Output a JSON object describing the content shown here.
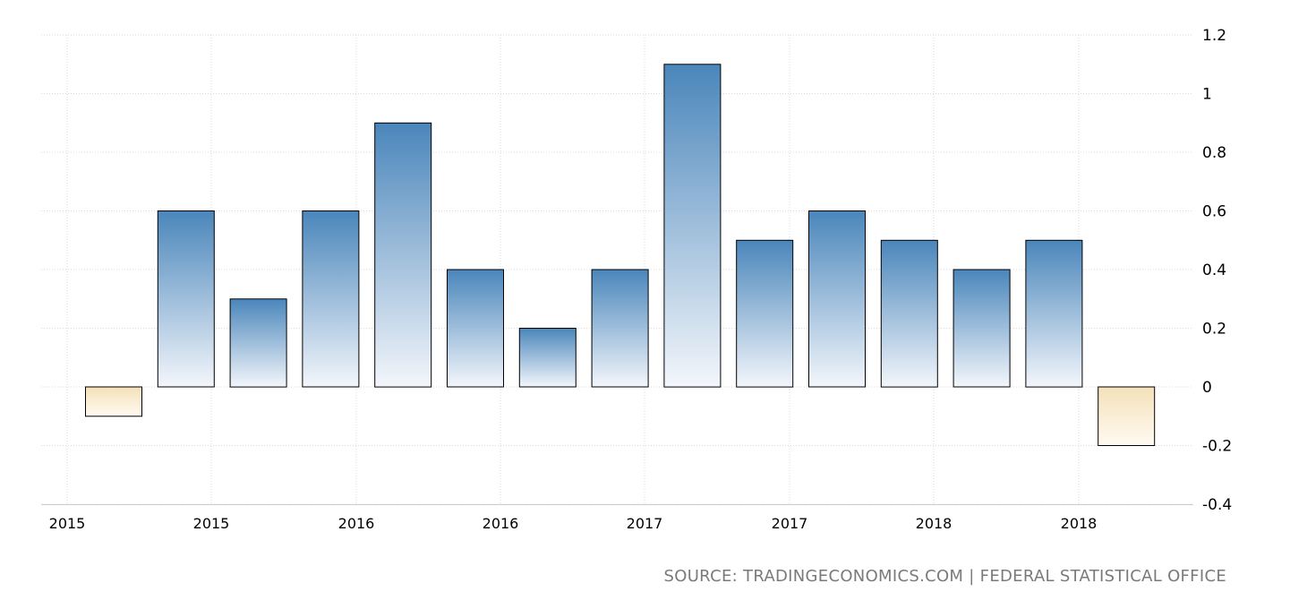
{
  "chart_data": {
    "type": "bar",
    "title": "",
    "xlabel": "",
    "ylabel": "",
    "values": [
      -0.1,
      0.6,
      0.3,
      0.6,
      0.9,
      0.4,
      0.2,
      0.4,
      1.1,
      0.5,
      0.6,
      0.5,
      0.4,
      0.5,
      -0.2
    ],
    "ylim": [
      -0.4,
      1.2
    ],
    "y_ticks": [
      "1.2",
      "1",
      "0.8",
      "0.6",
      "0.4",
      "0.2",
      "0",
      "-0.2",
      "-0.4"
    ],
    "x_tick_labels": [
      "2015",
      "2015",
      "2016",
      "2016",
      "2017",
      "2017",
      "2018",
      "2018"
    ],
    "grid": true,
    "y_axis_position": "right",
    "colors": {
      "positive_top": "#4a86bb",
      "positive_bottom": "#f3f6fb",
      "negative_top": "#f5e1b9",
      "negative_bottom": "#fffaf1",
      "bar_border": "#000000",
      "grid": "#d9d9d9"
    }
  },
  "source_text": "SOURCE: TRADINGECONOMICS.COM | FEDERAL STATISTICAL OFFICE"
}
